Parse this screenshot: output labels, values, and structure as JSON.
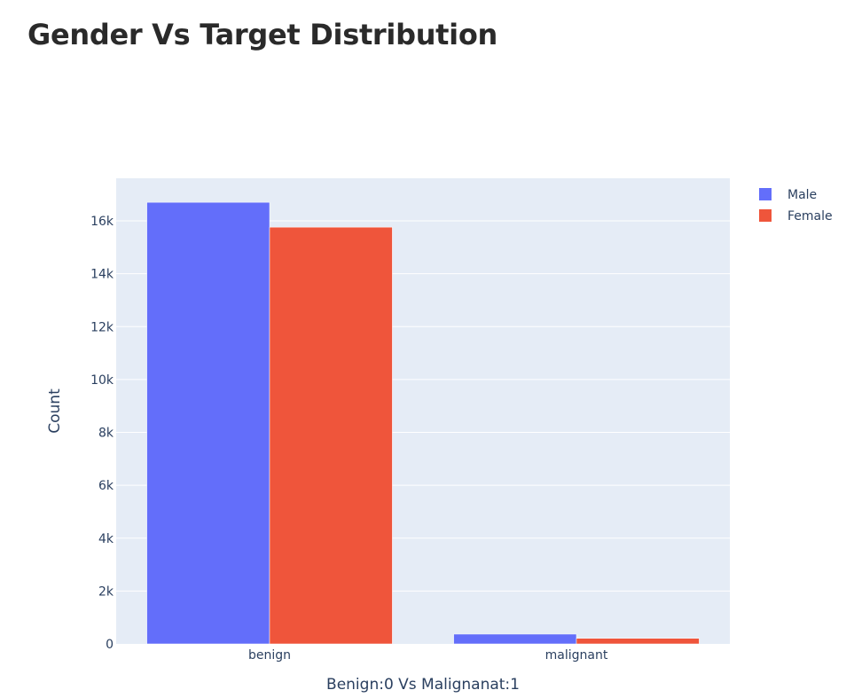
{
  "chart_data": {
    "type": "bar",
    "title": "Gender Vs Target Distribution",
    "xlabel": "Benign:0 Vs Malignanat:1",
    "ylabel": "Count",
    "categories": [
      "benign",
      "malignant"
    ],
    "series": [
      {
        "name": "Male",
        "values": [
          16700,
          370
        ],
        "color": "#636efa"
      },
      {
        "name": "Female",
        "values": [
          15760,
          210
        ],
        "color": "#ef553b"
      }
    ],
    "ylim": [
      0,
      16700
    ],
    "yticks": [
      0,
      2000,
      4000,
      6000,
      8000,
      10000,
      12000,
      14000,
      16000
    ],
    "ytick_labels": [
      "0",
      "2k",
      "4k",
      "6k",
      "8k",
      "10k",
      "12k",
      "14k",
      "16k"
    ],
    "grid": true,
    "legend_position": "top-right",
    "plot_background": "#e5ecf6"
  }
}
